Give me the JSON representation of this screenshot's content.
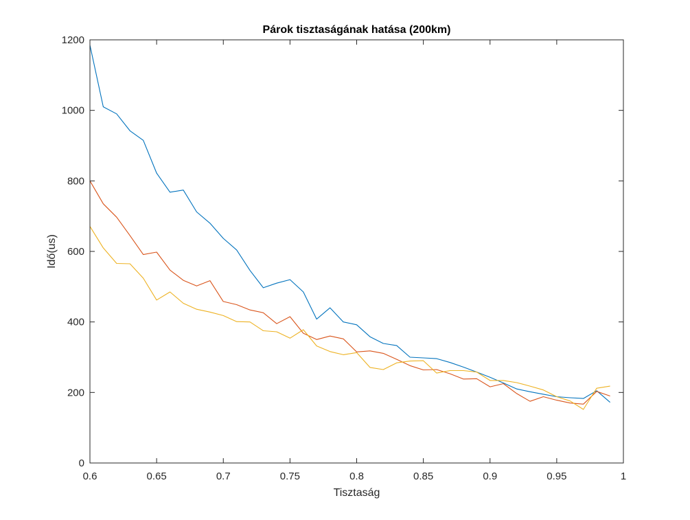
{
  "chart_data": {
    "type": "line",
    "title": "Párok tisztaságának hatása (200km)",
    "xlabel": "Tisztaság",
    "ylabel": "Idő(us)",
    "xlim": [
      0.6,
      1.0
    ],
    "ylim": [
      0,
      1200
    ],
    "grid": false,
    "legend": "none",
    "xticks": [
      0.6,
      0.65,
      0.7,
      0.75,
      0.8,
      0.85,
      0.9,
      0.95,
      1
    ],
    "xtick_labels": [
      "0.6",
      "0.65",
      "0.7",
      "0.75",
      "0.8",
      "0.85",
      "0.9",
      "0.95",
      "1"
    ],
    "yticks": [
      0,
      200,
      400,
      600,
      800,
      1000,
      1200
    ],
    "ytick_labels": [
      "0",
      "200",
      "400",
      "600",
      "800",
      "1000",
      "1200"
    ],
    "x": [
      0.6,
      0.61,
      0.62,
      0.63,
      0.64,
      0.65,
      0.66,
      0.67,
      0.68,
      0.69,
      0.7,
      0.71,
      0.72,
      0.73,
      0.74,
      0.75,
      0.76,
      0.77,
      0.78,
      0.79,
      0.8,
      0.81,
      0.82,
      0.83,
      0.84,
      0.85,
      0.86,
      0.87,
      0.88,
      0.89,
      0.9,
      0.91,
      0.92,
      0.93,
      0.94,
      0.95,
      0.96,
      0.97,
      0.98,
      0.99
    ],
    "series": [
      {
        "color": "#0072BD",
        "values": [
          1185,
          1010,
          990,
          942,
          915,
          822,
          768,
          774,
          712,
          680,
          637,
          604,
          546,
          497,
          510,
          520,
          485,
          408,
          440,
          400,
          392,
          358,
          339,
          333,
          300,
          298,
          296,
          285,
          272,
          258,
          243,
          227,
          210,
          202,
          195,
          188,
          185,
          183,
          205,
          172
        ]
      },
      {
        "color": "#D95319",
        "values": [
          800,
          735,
          697,
          645,
          591,
          598,
          547,
          518,
          502,
          517,
          458,
          449,
          434,
          426,
          395,
          415,
          368,
          350,
          360,
          352,
          315,
          318,
          311,
          294,
          276,
          264,
          265,
          253,
          238,
          239,
          216,
          225,
          197,
          175,
          188,
          178,
          170,
          167,
          203,
          190
        ]
      },
      {
        "color": "#EDB120",
        "values": [
          671,
          610,
          566,
          565,
          524,
          462,
          485,
          453,
          436,
          428,
          418,
          401,
          400,
          375,
          372,
          354,
          378,
          332,
          316,
          307,
          313,
          271,
          265,
          284,
          289,
          290,
          255,
          262,
          262,
          258,
          234,
          234,
          228,
          218,
          207,
          188,
          176,
          152,
          212,
          218
        ]
      }
    ]
  }
}
